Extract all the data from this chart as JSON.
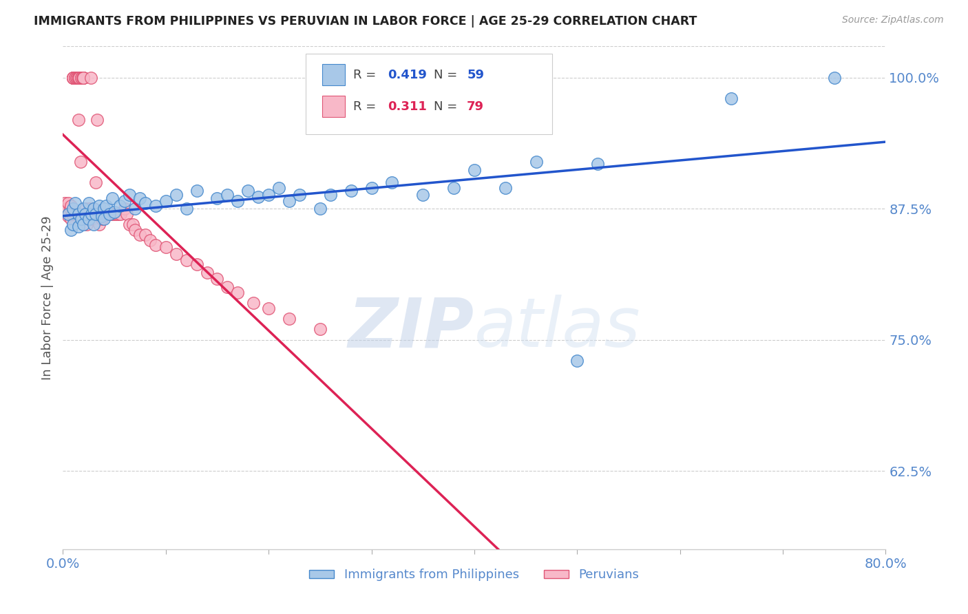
{
  "title": "IMMIGRANTS FROM PHILIPPINES VS PERUVIAN IN LABOR FORCE | AGE 25-29 CORRELATION CHART",
  "source": "Source: ZipAtlas.com",
  "ylabel": "In Labor Force | Age 25-29",
  "xlim": [
    0.0,
    0.8
  ],
  "ylim": [
    0.55,
    1.03
  ],
  "yticks": [
    0.625,
    0.75,
    0.875,
    1.0
  ],
  "ytick_labels": [
    "62.5%",
    "75.0%",
    "87.5%",
    "100.0%"
  ],
  "xticks": [
    0.0,
    0.1,
    0.2,
    0.3,
    0.4,
    0.5,
    0.6,
    0.7,
    0.8
  ],
  "xtick_labels": [
    "0.0%",
    "",
    "",
    "",
    "",
    "",
    "",
    "",
    "80.0%"
  ],
  "blue_color": "#a8c8e8",
  "pink_color": "#f8b8c8",
  "blue_edge": "#4488cc",
  "pink_edge": "#e05575",
  "trend_blue": "#2255cc",
  "trend_pink": "#dd2255",
  "legend_R_blue": "0.419",
  "legend_N_blue": "59",
  "legend_R_pink": "0.311",
  "legend_N_pink": "79",
  "label_blue": "Immigrants from Philippines",
  "label_pink": "Peruvians",
  "axis_color": "#5588cc",
  "watermark_zip": "ZIP",
  "watermark_atlas": "atlas",
  "blue_x": [
    0.005,
    0.008,
    0.01,
    0.01,
    0.012,
    0.015,
    0.015,
    0.018,
    0.02,
    0.02,
    0.022,
    0.025,
    0.025,
    0.028,
    0.03,
    0.03,
    0.032,
    0.035,
    0.038,
    0.04,
    0.04,
    0.042,
    0.045,
    0.048,
    0.05,
    0.055,
    0.06,
    0.065,
    0.07,
    0.075,
    0.08,
    0.09,
    0.1,
    0.11,
    0.12,
    0.13,
    0.15,
    0.16,
    0.17,
    0.18,
    0.19,
    0.2,
    0.21,
    0.22,
    0.23,
    0.25,
    0.26,
    0.28,
    0.3,
    0.32,
    0.35,
    0.38,
    0.4,
    0.43,
    0.46,
    0.5,
    0.52,
    0.65,
    0.75
  ],
  "blue_y": [
    0.87,
    0.855,
    0.875,
    0.86,
    0.88,
    0.87,
    0.858,
    0.865,
    0.875,
    0.86,
    0.87,
    0.88,
    0.865,
    0.87,
    0.875,
    0.86,
    0.87,
    0.878,
    0.868,
    0.875,
    0.865,
    0.878,
    0.87,
    0.885,
    0.872,
    0.878,
    0.882,
    0.888,
    0.875,
    0.885,
    0.88,
    0.878,
    0.882,
    0.888,
    0.875,
    0.892,
    0.885,
    0.888,
    0.882,
    0.892,
    0.886,
    0.888,
    0.895,
    0.882,
    0.888,
    0.875,
    0.888,
    0.892,
    0.895,
    0.9,
    0.888,
    0.895,
    0.912,
    0.895,
    0.92,
    0.73,
    0.918,
    0.98,
    1.0
  ],
  "pink_x": [
    0.002,
    0.003,
    0.005,
    0.005,
    0.006,
    0.007,
    0.008,
    0.008,
    0.009,
    0.01,
    0.01,
    0.01,
    0.01,
    0.01,
    0.01,
    0.012,
    0.012,
    0.013,
    0.014,
    0.015,
    0.015,
    0.015,
    0.015,
    0.015,
    0.016,
    0.017,
    0.018,
    0.018,
    0.019,
    0.02,
    0.02,
    0.02,
    0.02,
    0.021,
    0.022,
    0.023,
    0.024,
    0.025,
    0.026,
    0.027,
    0.028,
    0.03,
    0.03,
    0.032,
    0.033,
    0.035,
    0.036,
    0.038,
    0.04,
    0.041,
    0.042,
    0.044,
    0.046,
    0.048,
    0.05,
    0.052,
    0.054,
    0.056,
    0.06,
    0.062,
    0.065,
    0.068,
    0.07,
    0.075,
    0.08,
    0.085,
    0.09,
    0.1,
    0.11,
    0.12,
    0.13,
    0.14,
    0.15,
    0.16,
    0.17,
    0.185,
    0.2,
    0.22,
    0.25
  ],
  "pink_y": [
    0.88,
    0.875,
    0.88,
    0.868,
    0.87,
    0.875,
    0.865,
    0.878,
    0.87,
    1.0,
    1.0,
    1.0,
    1.0,
    1.0,
    1.0,
    1.0,
    1.0,
    1.0,
    1.0,
    1.0,
    1.0,
    1.0,
    1.0,
    0.96,
    1.0,
    0.92,
    1.0,
    1.0,
    1.0,
    1.0,
    1.0,
    1.0,
    1.0,
    0.87,
    0.875,
    0.86,
    0.87,
    0.865,
    0.875,
    1.0,
    0.865,
    0.87,
    0.875,
    0.9,
    0.96,
    0.86,
    0.87,
    0.865,
    0.87,
    0.87,
    0.87,
    0.87,
    0.87,
    0.87,
    0.87,
    0.87,
    0.87,
    0.87,
    0.875,
    0.87,
    0.86,
    0.86,
    0.855,
    0.85,
    0.85,
    0.845,
    0.84,
    0.838,
    0.832,
    0.826,
    0.822,
    0.814,
    0.808,
    0.8,
    0.795,
    0.785,
    0.78,
    0.77,
    0.76
  ]
}
